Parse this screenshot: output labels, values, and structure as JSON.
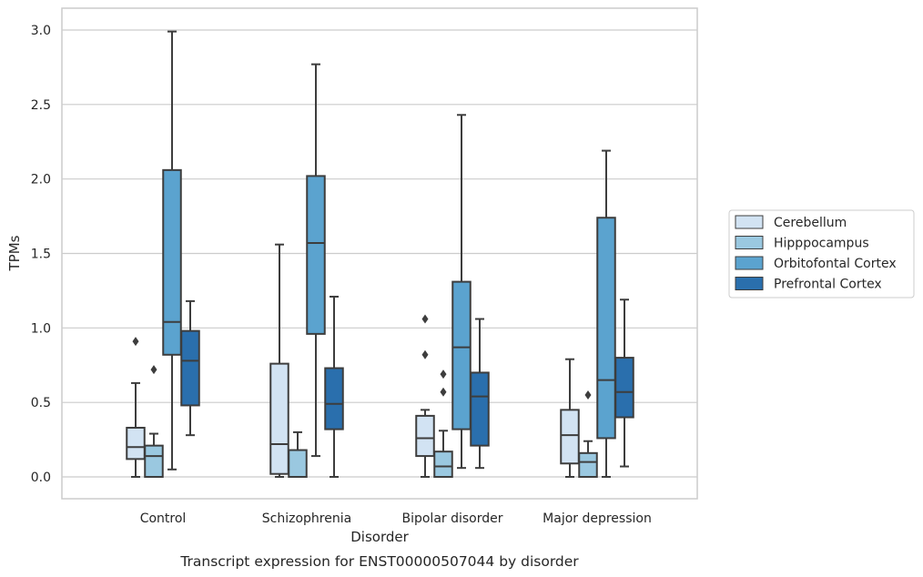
{
  "chart_data": {
    "type": "box",
    "title": "",
    "caption": "Transcript expression for ENST00000507044 by disorder",
    "xlabel": "Disorder",
    "ylabel": "TPMs",
    "ylim": [
      -0.14,
      3.15
    ],
    "yticks": [
      0.0,
      0.5,
      1.0,
      1.5,
      2.0,
      2.5,
      3.0
    ],
    "ytick_labels": [
      "0.0",
      "0.5",
      "1.0",
      "1.5",
      "2.0",
      "2.5",
      "3.0"
    ],
    "grid": "horizontal",
    "legend_position": "right",
    "categories": [
      "Control",
      "Schizophrenia",
      "Bipolar disorder",
      "Major depression"
    ],
    "series": [
      {
        "name": "Cerebellum",
        "color": "#d2e3f3",
        "boxes": [
          {
            "whisker_low": 0.0,
            "q1": 0.12,
            "median": 0.2,
            "q3": 0.33,
            "whisker_high": 0.63,
            "outliers": [
              0.91
            ]
          },
          {
            "whisker_low": 0.0,
            "q1": 0.02,
            "median": 0.22,
            "q3": 0.76,
            "whisker_high": 1.56,
            "outliers": []
          },
          {
            "whisker_low": 0.0,
            "q1": 0.14,
            "median": 0.26,
            "q3": 0.41,
            "whisker_high": 0.45,
            "outliers": [
              0.82,
              1.06
            ]
          },
          {
            "whisker_low": 0.0,
            "q1": 0.09,
            "median": 0.28,
            "q3": 0.45,
            "whisker_high": 0.79,
            "outliers": []
          }
        ]
      },
      {
        "name": "Hipppocampus",
        "color": "#9ac8e0",
        "boxes": [
          {
            "whisker_low": 0.0,
            "q1": 0.0,
            "median": 0.14,
            "q3": 0.21,
            "whisker_high": 0.29,
            "outliers": [
              0.72
            ]
          },
          {
            "whisker_low": 0.0,
            "q1": 0.0,
            "median": 0.0,
            "q3": 0.18,
            "whisker_high": 0.3,
            "outliers": []
          },
          {
            "whisker_low": 0.0,
            "q1": 0.0,
            "median": 0.07,
            "q3": 0.17,
            "whisker_high": 0.31,
            "outliers": [
              0.57,
              0.69
            ]
          },
          {
            "whisker_low": 0.0,
            "q1": 0.0,
            "median": 0.1,
            "q3": 0.16,
            "whisker_high": 0.24,
            "outliers": [
              0.55
            ]
          }
        ]
      },
      {
        "name": "Orbitofontal Cortex",
        "color": "#5ba3cf",
        "boxes": [
          {
            "whisker_low": 0.05,
            "q1": 0.82,
            "median": 1.04,
            "q3": 2.06,
            "whisker_high": 2.99,
            "outliers": []
          },
          {
            "whisker_low": 0.14,
            "q1": 0.96,
            "median": 1.57,
            "q3": 2.02,
            "whisker_high": 2.77,
            "outliers": []
          },
          {
            "whisker_low": 0.06,
            "q1": 0.32,
            "median": 0.87,
            "q3": 1.31,
            "whisker_high": 2.43,
            "outliers": []
          },
          {
            "whisker_low": 0.0,
            "q1": 0.26,
            "median": 0.65,
            "q3": 1.74,
            "whisker_high": 2.19,
            "outliers": []
          }
        ]
      },
      {
        "name": "Prefrontal Cortex",
        "color": "#2a6fad",
        "boxes": [
          {
            "whisker_low": 0.28,
            "q1": 0.48,
            "median": 0.78,
            "q3": 0.98,
            "whisker_high": 1.18,
            "outliers": []
          },
          {
            "whisker_low": 0.0,
            "q1": 0.32,
            "median": 0.49,
            "q3": 0.73,
            "whisker_high": 1.21,
            "outliers": []
          },
          {
            "whisker_low": 0.06,
            "q1": 0.21,
            "median": 0.54,
            "q3": 0.7,
            "whisker_high": 1.06,
            "outliers": []
          },
          {
            "whisker_low": 0.07,
            "q1": 0.4,
            "median": 0.57,
            "q3": 0.8,
            "whisker_high": 1.19,
            "outliers": []
          }
        ]
      }
    ]
  }
}
